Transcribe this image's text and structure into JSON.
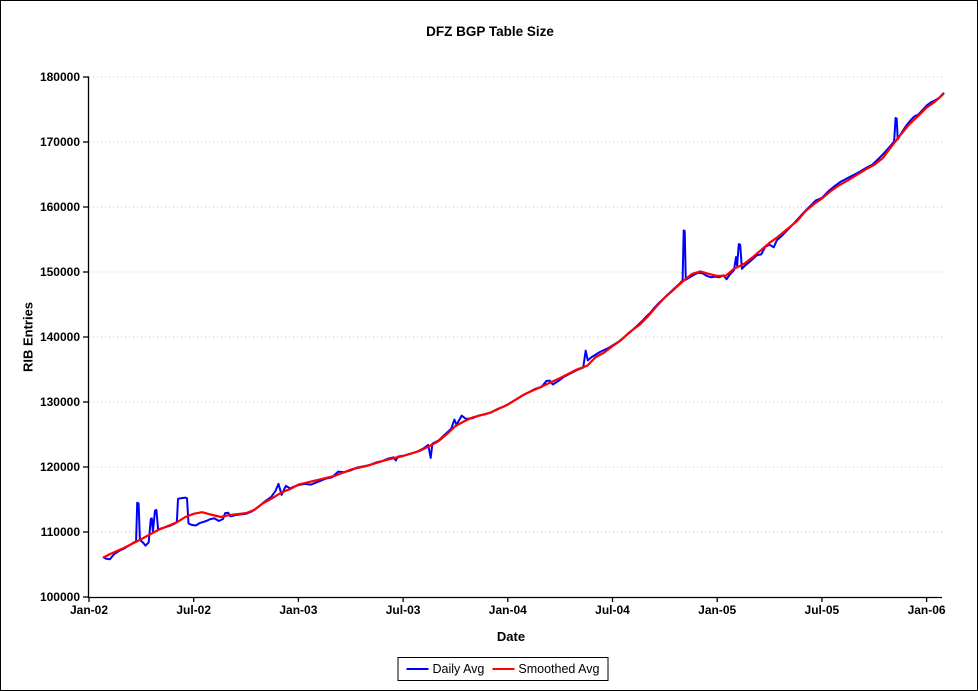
{
  "title": "DFZ BGP Table Size",
  "legend": {
    "daily_label": "Daily Avg",
    "smoothed_label": "Smoothed Avg"
  },
  "colors": {
    "daily": "#0000ff",
    "smoothed": "#ff0000",
    "gridline": "#c6c6c6",
    "axis": "#000000",
    "background": "#ffffff"
  },
  "chart_data": {
    "type": "line",
    "title": "DFZ BGP Table Size",
    "xlabel": "Date",
    "ylabel": "RIB Entries",
    "ylim": [
      100000,
      180000
    ],
    "xlim": [
      2002.0,
      2006.083
    ],
    "grid": "horizontal-dotted",
    "legend_position": "bottom-center",
    "y_tick_values": [
      100000,
      110000,
      120000,
      130000,
      140000,
      150000,
      160000,
      170000,
      180000
    ],
    "y_tick_labels": [
      "100000",
      "110000",
      "120000",
      "130000",
      "140000",
      "150000",
      "160000",
      "170000",
      "180000"
    ],
    "x_tick_years": [
      2002.0,
      2002.5,
      2003.0,
      2003.5,
      2004.0,
      2004.5,
      2005.0,
      2005.5,
      2006.0
    ],
    "x_tick_labels": [
      "Jan-02",
      "Jul-02",
      "Jan-03",
      "Jul-03",
      "Jan-04",
      "Jul-04",
      "Jan-05",
      "Jul-05",
      "Jan-06"
    ],
    "series": [
      {
        "name": "Daily Avg",
        "color": "#0000ff",
        "x": [
          2002.07,
          2002.08,
          2002.1,
          2002.12,
          2002.15,
          2002.17,
          2002.19,
          2002.21,
          2002.225,
          2002.23,
          2002.237,
          2002.243,
          2002.26,
          2002.27,
          2002.285,
          2002.295,
          2002.3,
          2002.305,
          2002.315,
          2002.322,
          2002.33,
          2002.35,
          2002.37,
          2002.39,
          2002.41,
          2002.42,
          2002.425,
          2002.44,
          2002.46,
          2002.468,
          2002.475,
          2002.49,
          2002.51,
          2002.53,
          2002.56,
          2002.58,
          2002.6,
          2002.62,
          2002.64,
          2002.65,
          2002.665,
          2002.675,
          2002.7,
          2002.72,
          2002.75,
          2002.78,
          2002.81,
          2002.84,
          2002.87,
          2002.89,
          2002.905,
          2002.92,
          2002.94,
          2002.96,
          2002.98,
          2003.0,
          2003.03,
          2003.06,
          2003.1,
          2003.13,
          2003.16,
          2003.19,
          2003.22,
          2003.25,
          2003.28,
          2003.31,
          2003.34,
          2003.37,
          2003.4,
          2003.43,
          2003.455,
          2003.465,
          2003.475,
          2003.51,
          2003.54,
          2003.57,
          2003.6,
          2003.62,
          2003.632,
          2003.64,
          2003.67,
          2003.7,
          2003.73,
          2003.745,
          2003.755,
          2003.78,
          2003.8,
          2003.83,
          2003.86,
          2003.89,
          2003.92,
          2003.95,
          2003.98,
          2004.01,
          2004.04,
          2004.07,
          2004.1,
          2004.13,
          2004.16,
          2004.185,
          2004.2,
          2004.215,
          2004.24,
          2004.27,
          2004.3,
          2004.33,
          2004.36,
          2004.372,
          2004.382,
          2004.4,
          2004.42,
          2004.44,
          2004.46,
          2004.48,
          2004.5,
          2004.53,
          2004.56,
          2004.59,
          2004.62,
          2004.64,
          2004.66,
          2004.68,
          2004.7,
          2004.72,
          2004.74,
          2004.76,
          2004.78,
          2004.8,
          2004.82,
          2004.835,
          2004.84,
          2004.845,
          2004.85,
          2004.87,
          2004.89,
          2004.91,
          2004.93,
          2004.95,
          2004.97,
          2004.99,
          2005.01,
          2005.03,
          2005.045,
          2005.06,
          2005.08,
          2005.09,
          2005.095,
          2005.103,
          2005.11,
          2005.118,
          2005.13,
          2005.16,
          2005.19,
          2005.21,
          2005.23,
          2005.25,
          2005.27,
          2005.285,
          2005.31,
          2005.34,
          2005.37,
          2005.4,
          2005.43,
          2005.455,
          2005.47,
          2005.5,
          2005.53,
          2005.56,
          2005.59,
          2005.62,
          2005.65,
          2005.68,
          2005.71,
          2005.74,
          2005.77,
          2005.8,
          2005.83,
          2005.845,
          2005.852,
          2005.857,
          2005.862,
          2005.88,
          2005.9,
          2005.92,
          2005.94,
          2005.96,
          2005.98,
          2006.0,
          2006.02,
          2006.04,
          2006.06,
          2006.08
        ],
        "y": [
          106100,
          105900,
          105800,
          106600,
          107200,
          107500,
          107900,
          108300,
          108600,
          114500,
          114400,
          108800,
          108300,
          107900,
          108400,
          112000,
          112100,
          110100,
          113300,
          113400,
          110400,
          110600,
          110800,
          111000,
          111300,
          111600,
          115100,
          115200,
          115300,
          115200,
          111300,
          111100,
          111000,
          111400,
          111700,
          112000,
          112100,
          111700,
          112000,
          112900,
          112950,
          112400,
          112600,
          112700,
          112800,
          113200,
          113900,
          114700,
          115400,
          116300,
          117400,
          115700,
          117100,
          116700,
          117000,
          117200,
          117400,
          117300,
          117800,
          118200,
          118400,
          119300,
          119200,
          119500,
          119900,
          120100,
          120300,
          120700,
          120900,
          121300,
          121500,
          121000,
          121600,
          121800,
          122100,
          122400,
          122900,
          123400,
          121400,
          123600,
          124100,
          125000,
          125900,
          127300,
          126500,
          127900,
          127400,
          127500,
          127900,
          128100,
          128400,
          128900,
          129300,
          129800,
          130400,
          131000,
          131500,
          132000,
          132300,
          133250,
          133300,
          132700,
          133200,
          133900,
          134400,
          134900,
          135300,
          137900,
          136400,
          136900,
          137300,
          137700,
          138000,
          138300,
          138700,
          139300,
          140100,
          140900,
          141800,
          142400,
          143100,
          143700,
          144500,
          145200,
          145800,
          146400,
          147000,
          147600,
          148200,
          148700,
          156400,
          156300,
          148800,
          149200,
          149600,
          149900,
          149800,
          149400,
          149200,
          149300,
          149200,
          149500,
          148900,
          149600,
          150300,
          152300,
          151000,
          154300,
          154200,
          150500,
          150900,
          151700,
          152600,
          152700,
          153900,
          154200,
          153800,
          154900,
          155600,
          156600,
          157600,
          158700,
          159700,
          160500,
          161000,
          161400,
          162400,
          163200,
          163900,
          164400,
          164900,
          165400,
          166000,
          166500,
          167400,
          168400,
          169500,
          170100,
          173700,
          173600,
          170400,
          171400,
          172400,
          173200,
          173900,
          174200,
          174900,
          175600,
          176100,
          176400,
          176800,
          177500
        ]
      },
      {
        "name": "Smoothed Avg",
        "color": "#ff0000",
        "x": [
          2002.07,
          2002.1,
          2002.17,
          2002.25,
          2002.33,
          2002.42,
          2002.46,
          2002.5,
          2002.54,
          2002.58,
          2002.63,
          2002.67,
          2002.71,
          2002.75,
          2002.79,
          2002.83,
          2002.88,
          2002.92,
          2002.96,
          2003.0,
          2003.08,
          2003.17,
          2003.25,
          2003.33,
          2003.42,
          2003.5,
          2003.58,
          2003.63,
          2003.67,
          2003.71,
          2003.75,
          2003.79,
          2003.83,
          2003.92,
          2004.0,
          2004.08,
          2004.17,
          2004.25,
          2004.33,
          2004.38,
          2004.42,
          2004.46,
          2004.5,
          2004.54,
          2004.58,
          2004.63,
          2004.67,
          2004.71,
          2004.75,
          2004.79,
          2004.83,
          2004.88,
          2004.92,
          2004.96,
          2005.0,
          2005.04,
          2005.08,
          2005.13,
          2005.17,
          2005.21,
          2005.25,
          2005.29,
          2005.33,
          2005.38,
          2005.42,
          2005.46,
          2005.5,
          2005.54,
          2005.58,
          2005.63,
          2005.67,
          2005.71,
          2005.75,
          2005.79,
          2005.83,
          2005.87,
          2005.92,
          2005.96,
          2006.0,
          2006.04,
          2006.08
        ],
        "y": [
          106100,
          106600,
          107600,
          108900,
          110300,
          111500,
          112300,
          112800,
          113050,
          112700,
          112300,
          112600,
          112750,
          112900,
          113400,
          114400,
          115300,
          116100,
          116600,
          117300,
          117900,
          118600,
          119600,
          120200,
          121100,
          121700,
          122500,
          123300,
          124000,
          125100,
          126300,
          127000,
          127600,
          128400,
          129600,
          131200,
          132500,
          133700,
          135000,
          135600,
          136900,
          137600,
          138600,
          139500,
          140700,
          141900,
          143200,
          144700,
          146100,
          147200,
          148400,
          149700,
          150100,
          149700,
          149400,
          149400,
          150500,
          151300,
          152300,
          153400,
          154500,
          155400,
          156500,
          157800,
          159300,
          160400,
          161300,
          162400,
          163300,
          164200,
          165000,
          165800,
          166500,
          167500,
          169200,
          170900,
          172800,
          174000,
          175300,
          176200,
          177400
        ]
      }
    ]
  }
}
